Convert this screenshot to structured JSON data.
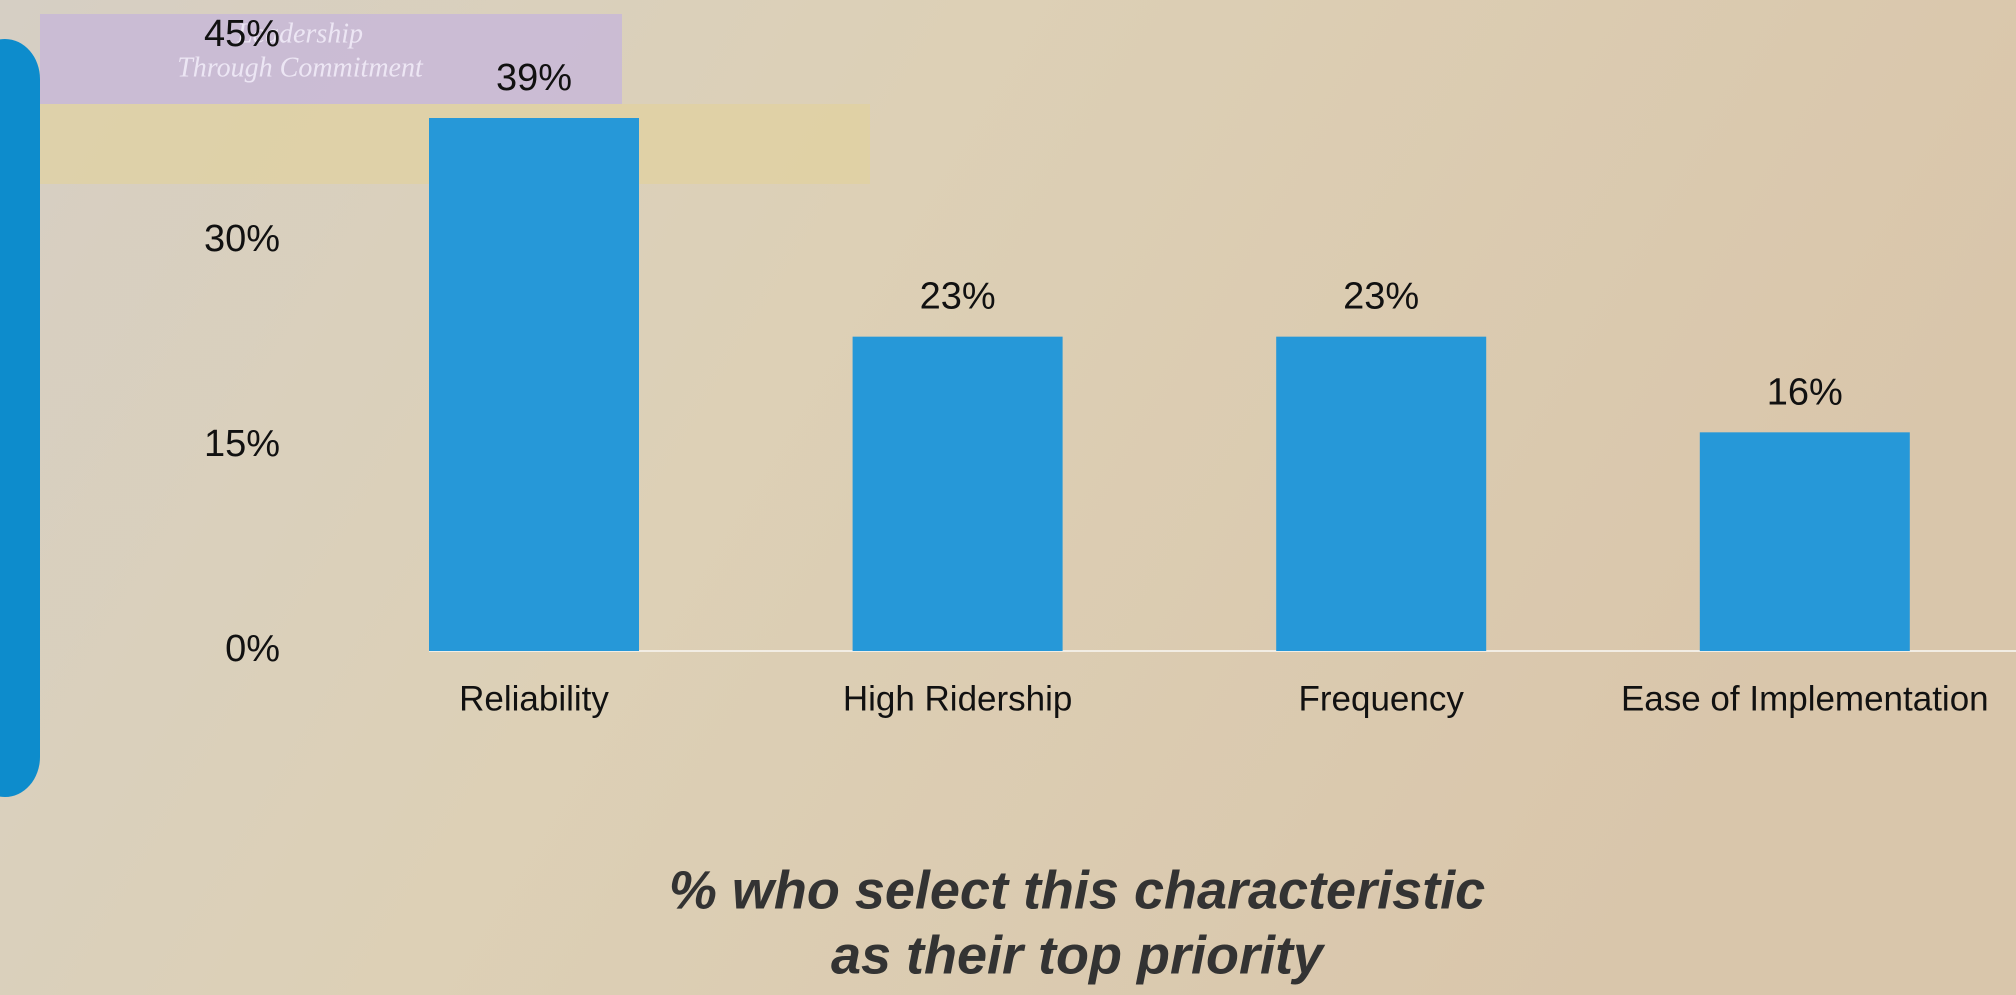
{
  "chart_data": {
    "type": "bar",
    "title": [
      "% who select this characteristic",
      "as their top priority"
    ],
    "categories": [
      "Reliability",
      "High Ridership",
      "Frequency",
      "Ease of Implementation"
    ],
    "values": [
      39,
      23,
      23,
      16
    ],
    "value_labels": [
      "39%",
      "23%",
      "23%",
      "16%"
    ],
    "color": "#2698d8",
    "ylim": [
      0,
      45
    ],
    "yticks": [
      {
        "value": 0,
        "label": "0%"
      },
      {
        "value": 15,
        "label": "15%"
      },
      {
        "value": 30,
        "label": "30%"
      },
      {
        "value": 45,
        "label": "45%"
      }
    ],
    "grid": false
  },
  "background_banner": [
    "Leadership",
    "Through Commitment"
  ]
}
